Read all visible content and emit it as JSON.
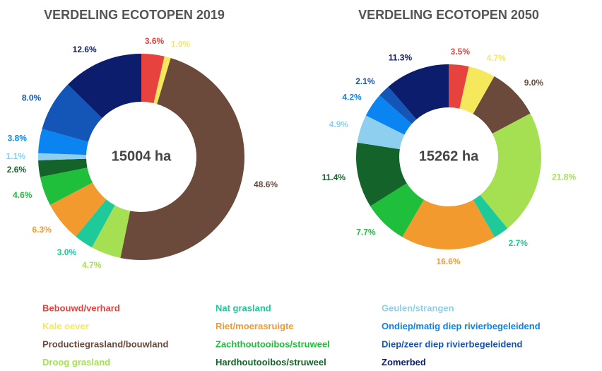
{
  "categories": [
    "Bebouwd/verhard",
    "Kale oever",
    "Productiegrasland/bouwland",
    "Droog grasland",
    "Nat grasland",
    "Riet/moerasruigte",
    "Zachthoutooibos/struweel",
    "Hardhoutooibos/struweel",
    "Geulen/strangen",
    "Ondiep/matig diep rivierbegeleidend",
    "Diep/zeer diep rivierbegeleidend",
    "Zomerbed"
  ],
  "colors": [
    "#e8423f",
    "#f6e85c",
    "#6b4a3c",
    "#a5e052",
    "#1ec99a",
    "#f39a2e",
    "#1fbf3c",
    "#13632a",
    "#8ecfef",
    "#0a84f0",
    "#1455b8",
    "#0d1d6e"
  ],
  "chart_data": [
    {
      "type": "pie",
      "title": "VERDELING ECOTOPEN 2019",
      "center_label": "15004 ha",
      "values": [
        3.6,
        1.0,
        48.6,
        4.7,
        3.0,
        6.3,
        4.6,
        2.6,
        1.1,
        3.8,
        8.0,
        12.6
      ],
      "value_labels": [
        "3.6%",
        "1.0%",
        "48.6%",
        "4.7%",
        "3.0%",
        "6.3%",
        "4.6%",
        "2.6%",
        "1.1%",
        "3.8%",
        "8.0%",
        "12.6%"
      ]
    },
    {
      "type": "pie",
      "title": "VERDELING ECOTOPEN 2050",
      "center_label": "15262 ha",
      "values": [
        3.5,
        4.7,
        9.0,
        21.8,
        2.7,
        16.6,
        7.7,
        11.4,
        4.9,
        4.2,
        2.1,
        11.3
      ],
      "value_labels": [
        "3.5%",
        "4.7%",
        "9.0%",
        "21.8%",
        "2.7%",
        "16.6%",
        "7.7%",
        "11.4%",
        "4.9%",
        "4.2%",
        "2.1%",
        "11.3%"
      ]
    }
  ]
}
